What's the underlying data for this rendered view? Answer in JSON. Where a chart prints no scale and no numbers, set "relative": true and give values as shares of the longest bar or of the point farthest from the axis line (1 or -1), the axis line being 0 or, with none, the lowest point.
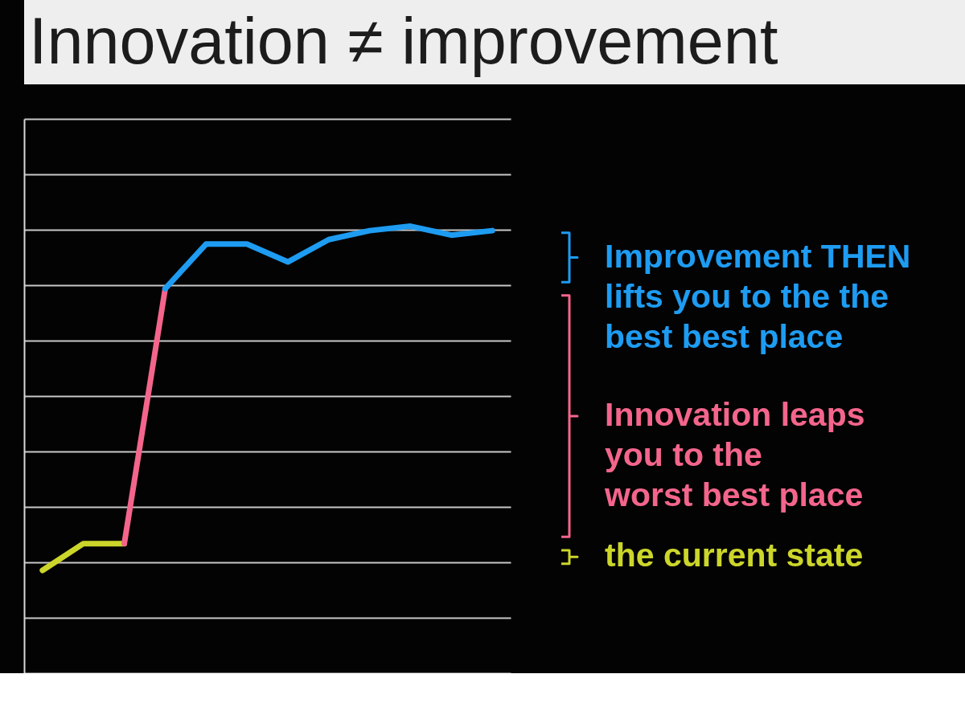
{
  "chart_data": {
    "type": "line",
    "title": "Innovation ≠ improvement",
    "relative": true,
    "grid": "y",
    "legend": "right",
    "categories": [
      null,
      null,
      null,
      null,
      null,
      null,
      null,
      null,
      null,
      null,
      null,
      null
    ],
    "series": [
      {
        "name": "the current state",
        "color": "#ccd62a",
        "values": [
          0.23,
          0.29,
          0.29,
          null,
          null,
          null,
          null,
          null,
          null,
          null,
          null,
          null
        ]
      },
      {
        "name": "Innovation leaps\nyou to the\nworst best place",
        "color": "#f4658c",
        "values": [
          null,
          null,
          0.29,
          0.86,
          null,
          null,
          null,
          null,
          null,
          null,
          null,
          null
        ]
      },
      {
        "name": "Improvement THEN\nlifts you to the the\nbest best place",
        "color": "#1e9cf2",
        "values": [
          null,
          null,
          null,
          0.86,
          0.96,
          0.96,
          0.92,
          0.97,
          0.99,
          1.0,
          0.98,
          0.99
        ]
      }
    ]
  }
}
